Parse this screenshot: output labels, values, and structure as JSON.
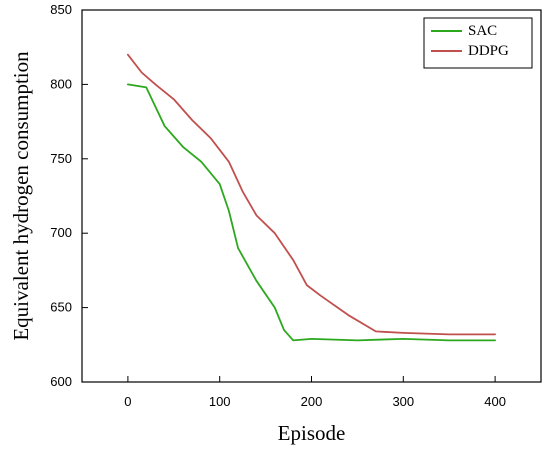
{
  "chart_data": {
    "type": "line",
    "xlabel": "Episode",
    "ylabel": "Equivalent hydrogen consumption",
    "xlim": [
      -50,
      450
    ],
    "ylim": [
      600,
      850
    ],
    "xticks": [
      0,
      100,
      200,
      300,
      400
    ],
    "yticks": [
      600,
      650,
      700,
      750,
      800,
      850
    ],
    "xtick_labels": [
      "0",
      "100",
      "200",
      "300",
      "400"
    ],
    "ytick_labels": [
      "600",
      "650",
      "700",
      "750",
      "800",
      "850"
    ],
    "grid": false,
    "legend_position": "top-right",
    "series": [
      {
        "name": "SAC",
        "color": "#2ca81e",
        "points": [
          [
            0,
            800
          ],
          [
            20,
            798
          ],
          [
            30,
            785
          ],
          [
            40,
            772
          ],
          [
            60,
            758
          ],
          [
            80,
            748
          ],
          [
            100,
            733
          ],
          [
            110,
            715
          ],
          [
            120,
            690
          ],
          [
            140,
            668
          ],
          [
            160,
            650
          ],
          [
            170,
            635
          ],
          [
            180,
            628
          ],
          [
            200,
            629
          ],
          [
            250,
            628
          ],
          [
            300,
            629
          ],
          [
            350,
            628
          ],
          [
            400,
            628
          ]
        ]
      },
      {
        "name": "DDPG",
        "color": "#c0504d",
        "points": [
          [
            0,
            820
          ],
          [
            15,
            808
          ],
          [
            30,
            800
          ],
          [
            50,
            790
          ],
          [
            70,
            776
          ],
          [
            90,
            764
          ],
          [
            110,
            748
          ],
          [
            125,
            728
          ],
          [
            140,
            712
          ],
          [
            160,
            700
          ],
          [
            180,
            682
          ],
          [
            195,
            665
          ],
          [
            210,
            658
          ],
          [
            240,
            645
          ],
          [
            270,
            634
          ],
          [
            300,
            633
          ],
          [
            350,
            632
          ],
          [
            400,
            632
          ]
        ]
      }
    ]
  }
}
